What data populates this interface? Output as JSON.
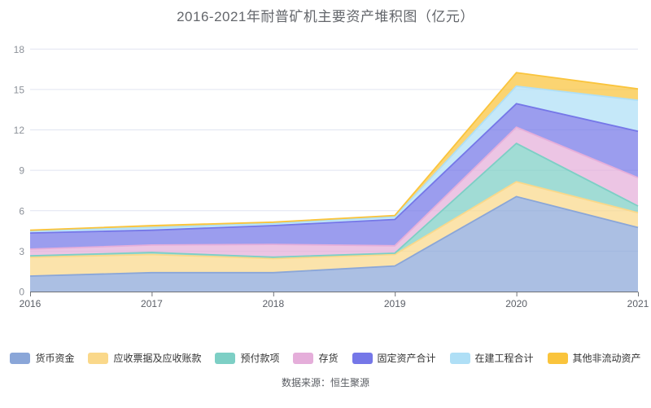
{
  "title": "2016-2021年耐普矿机主要资产堆积图（亿元）",
  "source": "数据来源：恒生聚源",
  "colors": {
    "grid": "#e0e4f1",
    "axis": "#6e7278",
    "y_label": "#8c9199",
    "x_label": "#5a5e66",
    "legend_text": "#333333",
    "title_text": "#63666b"
  },
  "chart_data": {
    "type": "area",
    "stacked": true,
    "title": "2016-2021年耐普矿机主要资产堆积图（亿元）",
    "xlabel": "",
    "ylabel": "",
    "unit": "亿元",
    "x": [
      "2016",
      "2017",
      "2018",
      "2019",
      "2020",
      "2021"
    ],
    "ylim": [
      0,
      18
    ],
    "yticks": [
      0,
      3,
      6,
      9,
      12,
      15,
      18
    ],
    "grid": true,
    "legend_position": "bottom",
    "series": [
      {
        "name": "货币资金",
        "color": "#8aa6d8",
        "values": [
          1.15,
          1.4,
          1.4,
          1.9,
          7.05,
          4.75
        ]
      },
      {
        "name": "应收票据及应收账款",
        "color": "#fad88a",
        "values": [
          1.4,
          1.35,
          1.05,
          0.85,
          1.1,
          1.1
        ]
      },
      {
        "name": "预付款项",
        "color": "#7dcfc5",
        "values": [
          0.1,
          0.15,
          0.1,
          0.1,
          2.85,
          0.5
        ]
      },
      {
        "name": "存货",
        "color": "#e5aeda",
        "values": [
          0.5,
          0.55,
          0.95,
          0.55,
          1.2,
          2.1
        ]
      },
      {
        "name": "固定资产合计",
        "color": "#7577e8",
        "values": [
          1.2,
          1.1,
          1.4,
          1.95,
          1.75,
          3.45
        ]
      },
      {
        "name": "在建工程合计",
        "color": "#afdff6",
        "values": [
          0.15,
          0.2,
          0.15,
          0.2,
          1.3,
          2.3
        ]
      },
      {
        "name": "其他非流动资产",
        "color": "#fac43c",
        "values": [
          0.05,
          0.15,
          0.1,
          0.1,
          1.0,
          0.85
        ]
      }
    ]
  }
}
